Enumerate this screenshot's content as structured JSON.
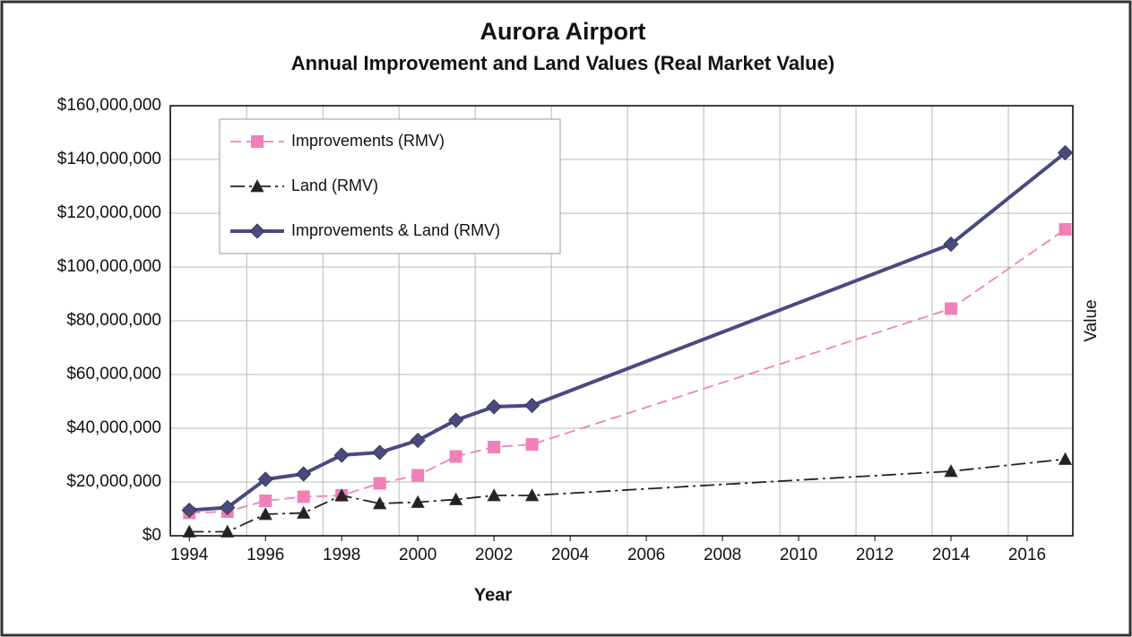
{
  "chart_data": {
    "type": "line",
    "title": "Aurora Airport",
    "subtitle": "Annual Improvement and Land Values (Real Market Value)",
    "x_label": "Year",
    "y_label": "Value",
    "x": [
      1994,
      1995,
      1996,
      1997,
      1998,
      1999,
      2000,
      2001,
      2002,
      2003,
      2014,
      2017
    ],
    "series": [
      {
        "name": "Improvements (RMV)",
        "color": "#f080b8",
        "dash": "dashed",
        "marker": "square",
        "values": [
          8500000,
          9000000,
          13000000,
          14500000,
          15000000,
          19500000,
          22500000,
          29500000,
          33000000,
          34000000,
          84500000,
          114000000
        ]
      },
      {
        "name": "Land (RMV)",
        "color": "#222222",
        "dash": "dashdot",
        "marker": "triangle",
        "values": [
          1500000,
          1500000,
          8000000,
          8500000,
          15000000,
          12000000,
          12500000,
          13500000,
          15000000,
          15000000,
          24000000,
          28500000
        ]
      },
      {
        "name": "Improvements & Land (RMV)",
        "color": "#4a4a82",
        "dash": "solid",
        "marker": "diamond",
        "values": [
          9500000,
          10500000,
          21000000,
          23000000,
          30000000,
          31000000,
          35500000,
          43000000,
          48000000,
          48500000,
          108500000,
          142500000
        ]
      }
    ],
    "xlim": [
      1993.5,
      2017.2
    ],
    "xticks": [
      1994,
      1996,
      1998,
      2000,
      2002,
      2004,
      2006,
      2008,
      2010,
      2012,
      2014,
      2016
    ],
    "ylim": [
      0,
      160000000
    ],
    "yticks": [
      {
        "value": 0,
        "label": "$0"
      },
      {
        "value": 20000000,
        "label": "$20,000,000"
      },
      {
        "value": 40000000,
        "label": "$40,000,000"
      },
      {
        "value": 60000000,
        "label": "$60,000,000"
      },
      {
        "value": 80000000,
        "label": "$80,000,000"
      },
      {
        "value": 100000000,
        "label": "$100,000,000"
      },
      {
        "value": 120000000,
        "label": "$120,000,000"
      },
      {
        "value": 140000000,
        "label": "$140,000,000"
      },
      {
        "value": 160000000,
        "label": "$160,000,000"
      }
    ],
    "grid": true,
    "legend": "upper left"
  }
}
